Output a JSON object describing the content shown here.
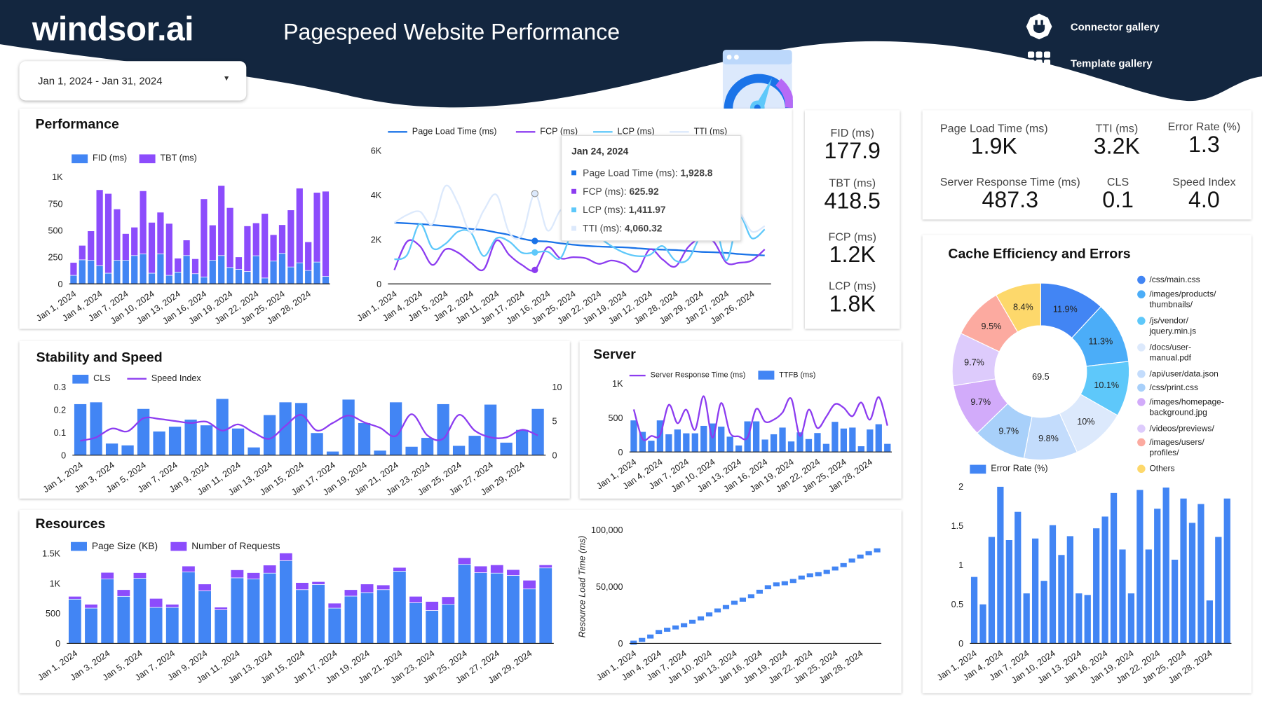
{
  "header": {
    "logo": "windsor.ai",
    "title": "Pagespeed Website Performance",
    "connector_gallery": "Connector gallery",
    "template_gallery": "Template gallery",
    "bg_color": "#13263f"
  },
  "date_range": {
    "value": "Jan 1, 2024 - Jan 31, 2024",
    "icon": "caret-down-icon"
  },
  "performance": {
    "title": "Performance",
    "bar_legend": [
      "FID (ms)",
      "TBT (ms)"
    ],
    "line_legend": [
      "Page Load Time (ms)",
      "FCP (ms)",
      "LCP (ms)",
      "TTI (ms)"
    ],
    "tooltip": {
      "date": "Jan 24, 2024",
      "rows": [
        {
          "label": "Page Load Time (ms): ",
          "value": "1,928.8"
        },
        {
          "label": "FCP (ms): ",
          "value": "625.92"
        },
        {
          "label": "LCP (ms): ",
          "value": "1,411.97"
        },
        {
          "label": "TTI (ms): ",
          "value": "4,060.32"
        }
      ]
    }
  },
  "metrics": [
    {
      "label": "FID (ms)",
      "value": "177.9"
    },
    {
      "label": "TBT (ms)",
      "value": "418.5"
    },
    {
      "label": "FCP (ms)",
      "value": "1.2K"
    },
    {
      "label": "LCP (ms)",
      "value": "1.8K"
    }
  ],
  "kpis": [
    {
      "label": "Page Load Time (ms)",
      "value": "1.9K"
    },
    {
      "label": "TTI (ms)",
      "value": "3.2K"
    },
    {
      "label": "Error Rate (%)",
      "value": "1.3"
    },
    {
      "label": "Server Response Time (ms)",
      "value": "487.3"
    },
    {
      "label": "CLS",
      "value": "0.1"
    },
    {
      "label": "Speed Index",
      "value": "4.0"
    }
  ],
  "stability": {
    "title": "Stability and Speed",
    "legend": [
      "CLS",
      "Speed Index"
    ]
  },
  "server": {
    "title": "Server",
    "legend": [
      "Server Response Time (ms)",
      "TTFB (ms)"
    ]
  },
  "resources": {
    "title": "Resources",
    "legend": [
      "Page Size (KB)",
      "Number of Requests"
    ]
  },
  "cache": {
    "title": "Cache Efficiency and Errors",
    "center_value": "69.5",
    "error_legend": "Error Rate (%)"
  },
  "colors": {
    "blue": "#4285f4",
    "purple": "#8c4cfc",
    "lightblue": "#5ec8fa",
    "pale": "#dce9fc"
  },
  "chart_data": [
    {
      "type": "bar",
      "stacked": true,
      "id": "perf-bars",
      "x_tick_labels": [
        "Jan 1, 2024",
        "Jan 4, 2024",
        "Jan 7, 2024",
        "Jan 10, 2024",
        "Jan 13, 2024",
        "Jan 16, 2024",
        "Jan 19, 2024",
        "Jan 22, 2024",
        "Jan 25, 2024",
        "Jan 28, 2024"
      ],
      "tick_interval": 3,
      "y_ticks": [
        0,
        250,
        500,
        750,
        1000
      ],
      "y_tick_labels": [
        "0",
        "250",
        "500",
        "750",
        "1K"
      ],
      "ylim": [
        0,
        1000
      ],
      "series": [
        {
          "name": "FID (ms)",
          "color": "#4285f4",
          "values": [
            80,
            225,
            220,
            170,
            100,
            220,
            220,
            265,
            280,
            100,
            280,
            80,
            110,
            265,
            95,
            65,
            220,
            265,
            153,
            136,
            116,
            263,
            55,
            213,
            285,
            158,
            197,
            125,
            204,
            70
          ]
        },
        {
          "name": "TBT (ms)",
          "color": "#8c4cfc",
          "values": [
            120,
            135,
            275,
            710,
            745,
            480,
            250,
            265,
            590,
            475,
            390,
            485,
            130,
            145,
            140,
            730,
            330,
            655,
            560,
            116,
            426,
            307,
            603,
            247,
            268,
            533,
            698,
            268,
            651,
            796
          ]
        }
      ]
    },
    {
      "type": "line",
      "id": "perf-lines",
      "x_tick_labels": [
        "Jan 1, 2024",
        "Jan 4, 2024",
        "Jan 5, 2024",
        "Jan 2, 2024",
        "Jan 11, 2024",
        "Jan 17, 2024",
        "Jan 16, 2024",
        "Jan 25, 2024",
        "Jan 22, 2024",
        "Jan 19, 2024",
        "Jan 12, 2024",
        "Jan 28, 2024",
        "Jan 29, 2024",
        "Jan 27, 2024",
        "Jan 26, 2024"
      ],
      "tick_interval": 2,
      "y_ticks": [
        0,
        2000,
        4000,
        6000
      ],
      "y_tick_labels": [
        "0",
        "2K",
        "4K",
        "6K"
      ],
      "ylim": [
        0,
        6000
      ],
      "highlight_index": 11,
      "series": [
        {
          "name": "Page Load Time (ms)",
          "color": "#1a73e8",
          "values": [
            2750,
            2720,
            2690,
            2650,
            2600,
            2540,
            2470,
            2420,
            2310,
            2200,
            2030,
            1928.8,
            1900,
            1820,
            1760,
            1710,
            1680,
            1660,
            1640,
            1600,
            1560,
            1540,
            1520,
            1480,
            1440,
            1420,
            1390,
            1340,
            1300,
            1280
          ]
        },
        {
          "name": "FCP (ms)",
          "color": "#8c3cf0",
          "values": [
            620,
            1900,
            1700,
            850,
            1550,
            1400,
            950,
            650,
            1950,
            1300,
            850,
            625.92,
            1650,
            1150,
            1200,
            1150,
            900,
            1050,
            900,
            560,
            1550,
            1100,
            780,
            1650,
            2050,
            1900,
            950,
            950,
            1050,
            1550
          ]
        },
        {
          "name": "LCP (ms)",
          "color": "#5ec8fa",
          "values": [
            1100,
            1300,
            2700,
            1600,
            1800,
            2350,
            2300,
            1250,
            2050,
            1900,
            1400,
            1411.97,
            1450,
            1150,
            2400,
            2500,
            2100,
            1700,
            1400,
            1250,
            1300,
            1700,
            1050,
            1100,
            2200,
            2900,
            1050,
            3000,
            2050,
            2450
          ]
        },
        {
          "name": "TTI (ms)",
          "color": "#dce9fc",
          "values": [
            2750,
            3100,
            3250,
            2700,
            4400,
            3600,
            2300,
            3300,
            4000,
            2300,
            2200,
            4060.32,
            2400,
            3300,
            3500,
            3000,
            2700,
            2500,
            2400,
            2600,
            2800,
            3000,
            2700,
            2600,
            2900,
            3300,
            3000,
            3200,
            2350,
            2600
          ]
        }
      ]
    },
    {
      "type": "bar",
      "id": "stability",
      "x_tick_labels": [
        "Jan 1, 2024",
        "Jan 3, 2024",
        "Jan 5, 2024",
        "Jan 7, 2024",
        "Jan 9, 2024",
        "Jan 11, 2024",
        "Jan 13, 2024",
        "Jan 15, 2024",
        "Jan 17, 2024",
        "Jan 19, 2024",
        "Jan 21, 2024",
        "Jan 23, 2024",
        "Jan 25, 2024",
        "Jan 27, 2024",
        "Jan 29, 2024"
      ],
      "tick_interval": 2,
      "y_ticks": [
        0,
        0.1,
        0.2,
        0.3
      ],
      "y_tick_labels": [
        "0",
        "0.1",
        "0.2",
        "0.3"
      ],
      "ylim": [
        0,
        0.3
      ],
      "y2_ticks": [
        0,
        5,
        10
      ],
      "y2_tick_labels": [
        "0",
        "5",
        "10"
      ],
      "y2lim": [
        0,
        10
      ],
      "series": [
        {
          "name": "CLS",
          "color": "#4285f4",
          "values": [
            0.225,
            0.233,
            0.052,
            0.044,
            0.204,
            0.105,
            0.126,
            0.157,
            0.132,
            0.248,
            0.118,
            0.035,
            0.177,
            0.233,
            0.23,
            0.098,
            0.017,
            0.245,
            0.142,
            0.021,
            0.233,
            0.038,
            0.077,
            0.225,
            0.042,
            0.086,
            0.223,
            0.056,
            0.112,
            0.204
          ]
        },
        {
          "name": "Speed Index",
          "color": "#8c3cf0",
          "axis": "right",
          "values": [
            2.1,
            2.6,
            3.9,
            3.5,
            5.4,
            5.3,
            5.0,
            4.7,
            4.9,
            3.6,
            4.5,
            3.3,
            2.4,
            4.3,
            5.9,
            3.6,
            4.7,
            5.8,
            4.8,
            4.0,
            2.8,
            6.0,
            2.9,
            2.4,
            5.9,
            3.6,
            2.6,
            2.6,
            3.7,
            2.9
          ]
        }
      ]
    },
    {
      "type": "bar",
      "id": "server",
      "x_tick_labels": [
        "Jan 1, 2024",
        "Jan 4, 2024",
        "Jan 7, 2024",
        "Jan 10, 2024",
        "Jan 13, 2024",
        "Jan 16, 2024",
        "Jan 19, 2024",
        "Jan 22, 2024",
        "Jan 25, 2024",
        "Jan 28, 2024"
      ],
      "tick_interval": 3,
      "y_ticks": [
        0,
        500,
        1000
      ],
      "y_tick_labels": [
        "0",
        "500",
        "1K"
      ],
      "ylim": [
        0,
        1000
      ],
      "series": [
        {
          "name": "TTFB (ms)",
          "color": "#4285f4",
          "values": [
            465,
            297,
            168,
            465,
            262,
            332,
            276,
            276,
            385,
            420,
            374,
            227,
            98,
            451,
            451,
            185,
            262,
            360,
            157,
            290,
            192,
            280,
            122,
            444,
            346,
            360,
            87,
            332,
            409,
            122
          ]
        },
        {
          "name": "Server Response Time (ms)",
          "color": "#8c3cf0",
          "line": true,
          "values": [
            622,
            192,
            234,
            245,
            689,
            420,
            619,
            325,
            815,
            210,
            717,
            280,
            227,
            210,
            629,
            444,
            472,
            577,
            780,
            234,
            619,
            350,
            514,
            699,
            647,
            524,
            724,
            472,
            804,
            385
          ]
        }
      ]
    },
    {
      "type": "bar",
      "stacked": true,
      "id": "resources",
      "x_tick_labels": [
        "Jan 1, 2024",
        "Jan 3, 2024",
        "Jan 5, 2024",
        "Jan 7, 2024",
        "Jan 9, 2024",
        "Jan 11, 2024",
        "Jan 13, 2024",
        "Jan 15, 2024",
        "Jan 17, 2024",
        "Jan 19, 2024",
        "Jan 21, 2024",
        "Jan 23, 2024",
        "Jan 25, 2024",
        "Jan 27, 2024",
        "Jan 29, 2024"
      ],
      "tick_interval": 2,
      "y_ticks": [
        0,
        500,
        1000,
        1500
      ],
      "y_tick_labels": [
        "0",
        "500",
        "1K",
        "1.5K"
      ],
      "ylim": [
        0,
        1500
      ],
      "series": [
        {
          "name": "Page Size (KB)",
          "color": "#4285f4",
          "values": [
            736,
            587,
            1071,
            783,
            1083,
            598,
            598,
            1189,
            874,
            559,
            1091,
            1071,
            1169,
            1378,
            894,
            980,
            587,
            787,
            846,
            894,
            1201,
            677,
            547,
            650,
            1315,
            1177,
            1169,
            1130,
            906,
            1256
          ]
        },
        {
          "name": "Number of Requests",
          "color": "#8c4cfc",
          "values": [
            47,
            63,
            110,
            111,
            94,
            150,
            52,
            98,
            114,
            43,
            133,
            106,
            134,
            126,
            118,
            48,
            82,
            107,
            142,
            78,
            63,
            106,
            150,
            126,
            110,
            110,
            138,
            98,
            145,
            51
          ]
        }
      ]
    },
    {
      "type": "scatter",
      "id": "resource-load",
      "ylabel": "Resource Load Time (ms)",
      "x_tick_labels": [
        "Jan 1, 2024",
        "Jan 4, 2024",
        "Jan 7, 2024",
        "Jan 10, 2024",
        "Jan 13, 2024",
        "Jan 16, 2024",
        "Jan 19, 2024",
        "Jan 22, 2024",
        "Jan 25, 2024",
        "Jan 28, 2024"
      ],
      "tick_interval": 3,
      "y_ticks": [
        0,
        50000,
        100000
      ],
      "y_tick_labels": [
        "0",
        "50,000",
        "100,000"
      ],
      "ylim": [
        0,
        100000
      ],
      "series": [
        {
          "color": "#4285f4",
          "values": [
            600,
            3000,
            6000,
            10000,
            12000,
            14000,
            16000,
            19000,
            22000,
            25500,
            29000,
            32000,
            35800,
            38500,
            41500,
            45500,
            49500,
            52000,
            53000,
            55000,
            58000,
            60000,
            61000,
            63000,
            66000,
            69000,
            73000,
            76500,
            79500,
            82000
          ]
        }
      ]
    },
    {
      "type": "pie",
      "donut": true,
      "id": "cache",
      "center_value": 69.5,
      "slices": [
        {
          "label": "/css/main.css",
          "value": 11.9,
          "color": "#4285f4"
        },
        {
          "label": "/images/products/thumbnails/",
          "value": 11.3,
          "color": "#4badf8"
        },
        {
          "label": "/js/vendor/jquery.min.js",
          "value": 10.1,
          "color": "#5ec8fa"
        },
        {
          "label": "/docs/user-manual.pdf",
          "value": 10,
          "color": "#dce9fc"
        },
        {
          "label": "/api/user/data.json",
          "value": 9.8,
          "color": "#c3dcfc"
        },
        {
          "label": "/css/print.css",
          "value": 9.7,
          "color": "#a8d0fa"
        },
        {
          "label": "/images/homepage-background.jpg",
          "value": 9.7,
          "color": "#d2abfa"
        },
        {
          "label": "/videos/previews/",
          "value": 9.7,
          "color": "#ddcbfc"
        },
        {
          "label": "/images/users/profiles/",
          "value": 9.5,
          "color": "#fcaaa0"
        },
        {
          "label": "Others",
          "value": 8.4,
          "color": "#fdd86b"
        }
      ],
      "slice_labels": [
        "11.9%",
        "11.3%",
        "10.1%",
        "10%",
        "9.8%",
        "9.7%",
        "9.7%",
        "9.7%",
        "9.5%",
        "8.4%"
      ],
      "legend_lines": [
        [
          "/css/main.css"
        ],
        [
          "/images/products/",
          "thumbnails/"
        ],
        [
          "/js/vendor/",
          "jquery.min.js"
        ],
        [
          "/docs/user-",
          "manual.pdf"
        ],
        [
          "/api/user/data.json"
        ],
        [
          "/css/print.css"
        ],
        [
          "/images/homepage-",
          "background.jpg"
        ],
        [
          "/videos/previews/"
        ],
        [
          "/images/users/",
          "profiles/"
        ],
        [
          "Others"
        ]
      ]
    },
    {
      "type": "bar",
      "id": "error-rate",
      "x_tick_labels": [
        "Jan 1, 2024",
        "Jan 4, 2024",
        "Jan 7, 2024",
        "Jan 10, 2024",
        "Jan 13, 2024",
        "Jan 16, 2024",
        "Jan 19, 2024",
        "Jan 22, 2024",
        "Jan 25, 2024",
        "Jan 28, 2024"
      ],
      "tick_interval": 3,
      "y_ticks": [
        0,
        0.5,
        1,
        1.5,
        2
      ],
      "y_tick_labels": [
        "0",
        "0.5",
        "1",
        "1.5",
        "2"
      ],
      "ylim": [
        0,
        2
      ],
      "series": [
        {
          "name": "Error Rate (%)",
          "color": "#4285f4",
          "values": [
            0.85,
            0.5,
            1.36,
            2.0,
            1.32,
            1.68,
            0.64,
            1.34,
            0.8,
            1.51,
            1.13,
            1.37,
            0.64,
            0.62,
            1.47,
            1.62,
            1.92,
            1.2,
            0.64,
            1.96,
            1.2,
            1.72,
            1.99,
            1.07,
            1.85,
            1.54,
            1.78,
            0.55,
            1.36,
            1.85
          ]
        }
      ]
    }
  ]
}
